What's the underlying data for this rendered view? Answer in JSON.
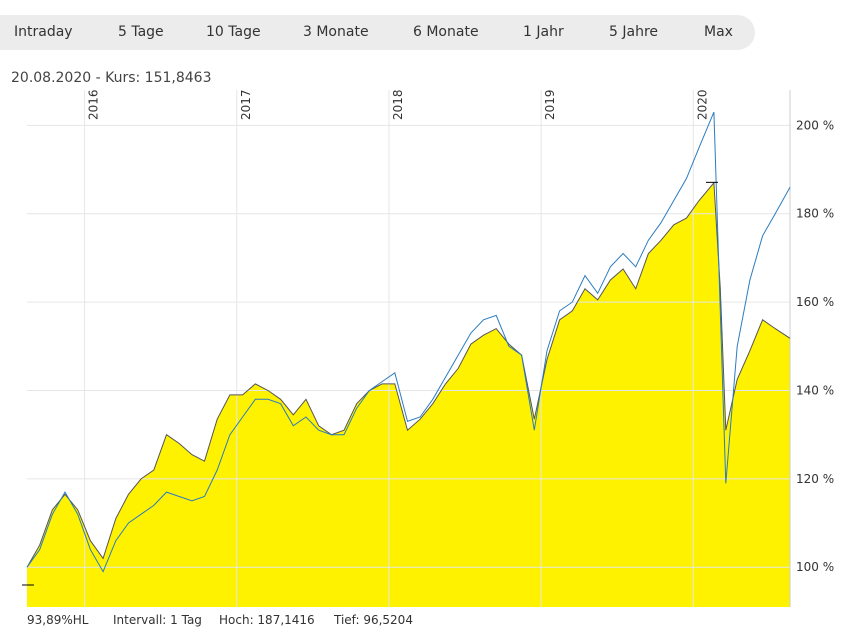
{
  "tabs": [
    "Intraday",
    "5 Tage",
    "10 Tage",
    "3 Monate",
    "6 Monate",
    "1 Jahr",
    "5 Jahre",
    "Max"
  ],
  "info": "20.08.2020  -  Kurs: 151,8463",
  "footer": {
    "perf": "93,89%HL",
    "interval": "Intervall: 1 Tag",
    "high": "Hoch: 187,1416",
    "low": "Tief: 96,5204"
  },
  "chart_data": {
    "type": "area",
    "x_ticks": [
      "2016",
      "2017",
      "2018",
      "2019",
      "2020"
    ],
    "y_ticks": [
      "100 %",
      "120 %",
      "140 %",
      "160 %",
      "180 %",
      "200 %"
    ],
    "ylim": [
      91,
      208
    ],
    "xlim": [
      "2015-08-15",
      "2020-08-20"
    ],
    "grid": true,
    "colors": {
      "fill": "#fff200",
      "line": "#555555",
      "benchmark": "#2a7cc0"
    },
    "series": [
      {
        "dates": [
          "2015-08-15",
          "2015-09",
          "2015-10",
          "2015-11",
          "2015-12",
          "2016-01",
          "2016-02",
          "2016-03",
          "2016-04",
          "2016-05",
          "2016-06",
          "2016-07",
          "2016-08",
          "2016-09",
          "2016-10",
          "2016-11",
          "2016-12",
          "2017-01",
          "2017-02",
          "2017-03",
          "2017-04",
          "2017-05",
          "2017-06",
          "2017-07",
          "2017-08",
          "2017-09",
          "2017-10",
          "2017-11",
          "2017-12",
          "2018-01",
          "2018-02",
          "2018-03",
          "2018-04",
          "2018-05",
          "2018-06",
          "2018-07",
          "2018-08",
          "2018-09",
          "2018-10",
          "2018-11",
          "2018-12",
          "2019-01",
          "2019-02",
          "2019-03",
          "2019-04",
          "2019-05",
          "2019-06",
          "2019-07",
          "2019-08",
          "2019-09",
          "2019-10",
          "2019-11",
          "2019-12",
          "2020-01",
          "2020-02-20",
          "2020-03-05",
          "2020-03-18",
          "2020-04",
          "2020-05",
          "2020-06",
          "2020-07",
          "2020-08-20"
        ],
        "values": [
          100,
          105,
          113,
          116.5,
          113,
          106,
          102,
          111,
          116.5,
          120,
          122,
          130,
          128,
          125.5,
          124,
          133.5,
          139,
          139,
          141.5,
          140,
          138,
          134.5,
          138,
          132,
          130,
          131,
          137,
          140,
          141.5,
          141.5,
          131,
          133.5,
          137,
          141.5,
          145,
          150.5,
          152.5,
          154,
          150.5,
          148,
          133.5,
          147,
          156,
          158,
          163,
          160.5,
          165,
          167.5,
          163,
          171,
          174,
          177.5,
          179,
          183,
          187,
          163,
          131,
          142.5,
          149,
          156,
          154,
          151.8
        ]
      },
      {
        "dates": [
          "2015-08-15",
          "2015-09",
          "2015-10",
          "2015-11",
          "2015-12",
          "2016-01",
          "2016-02",
          "2016-03",
          "2016-04",
          "2016-05",
          "2016-06",
          "2016-07",
          "2016-08",
          "2016-09",
          "2016-10",
          "2016-11",
          "2016-12",
          "2017-01",
          "2017-02",
          "2017-03",
          "2017-04",
          "2017-05",
          "2017-06",
          "2017-07",
          "2017-08",
          "2017-09",
          "2017-10",
          "2017-11",
          "2017-12",
          "2018-01",
          "2018-02",
          "2018-03",
          "2018-04",
          "2018-05",
          "2018-06",
          "2018-07",
          "2018-08",
          "2018-09",
          "2018-10",
          "2018-11",
          "2018-12",
          "2019-01",
          "2019-02",
          "2019-03",
          "2019-04",
          "2019-05",
          "2019-06",
          "2019-07",
          "2019-08",
          "2019-09",
          "2019-10",
          "2019-11",
          "2019-12",
          "2020-01",
          "2020-02-20",
          "2020-03-18",
          "2020-04",
          "2020-05",
          "2020-06",
          "2020-07",
          "2020-08-20"
        ],
        "values": [
          100,
          104,
          112,
          117,
          112,
          104,
          99,
          106,
          110,
          112,
          114,
          117,
          116,
          115,
          116,
          122,
          130,
          134,
          138,
          138,
          137,
          132,
          134,
          131,
          130,
          130,
          136,
          140,
          142,
          144,
          133,
          134,
          138,
          143,
          148,
          153,
          156,
          157,
          150,
          148,
          131,
          149,
          158,
          160,
          166,
          162,
          168,
          171,
          168,
          174,
          178,
          183,
          188,
          195,
          203,
          119,
          150,
          165,
          175,
          180,
          186
        ]
      }
    ]
  }
}
